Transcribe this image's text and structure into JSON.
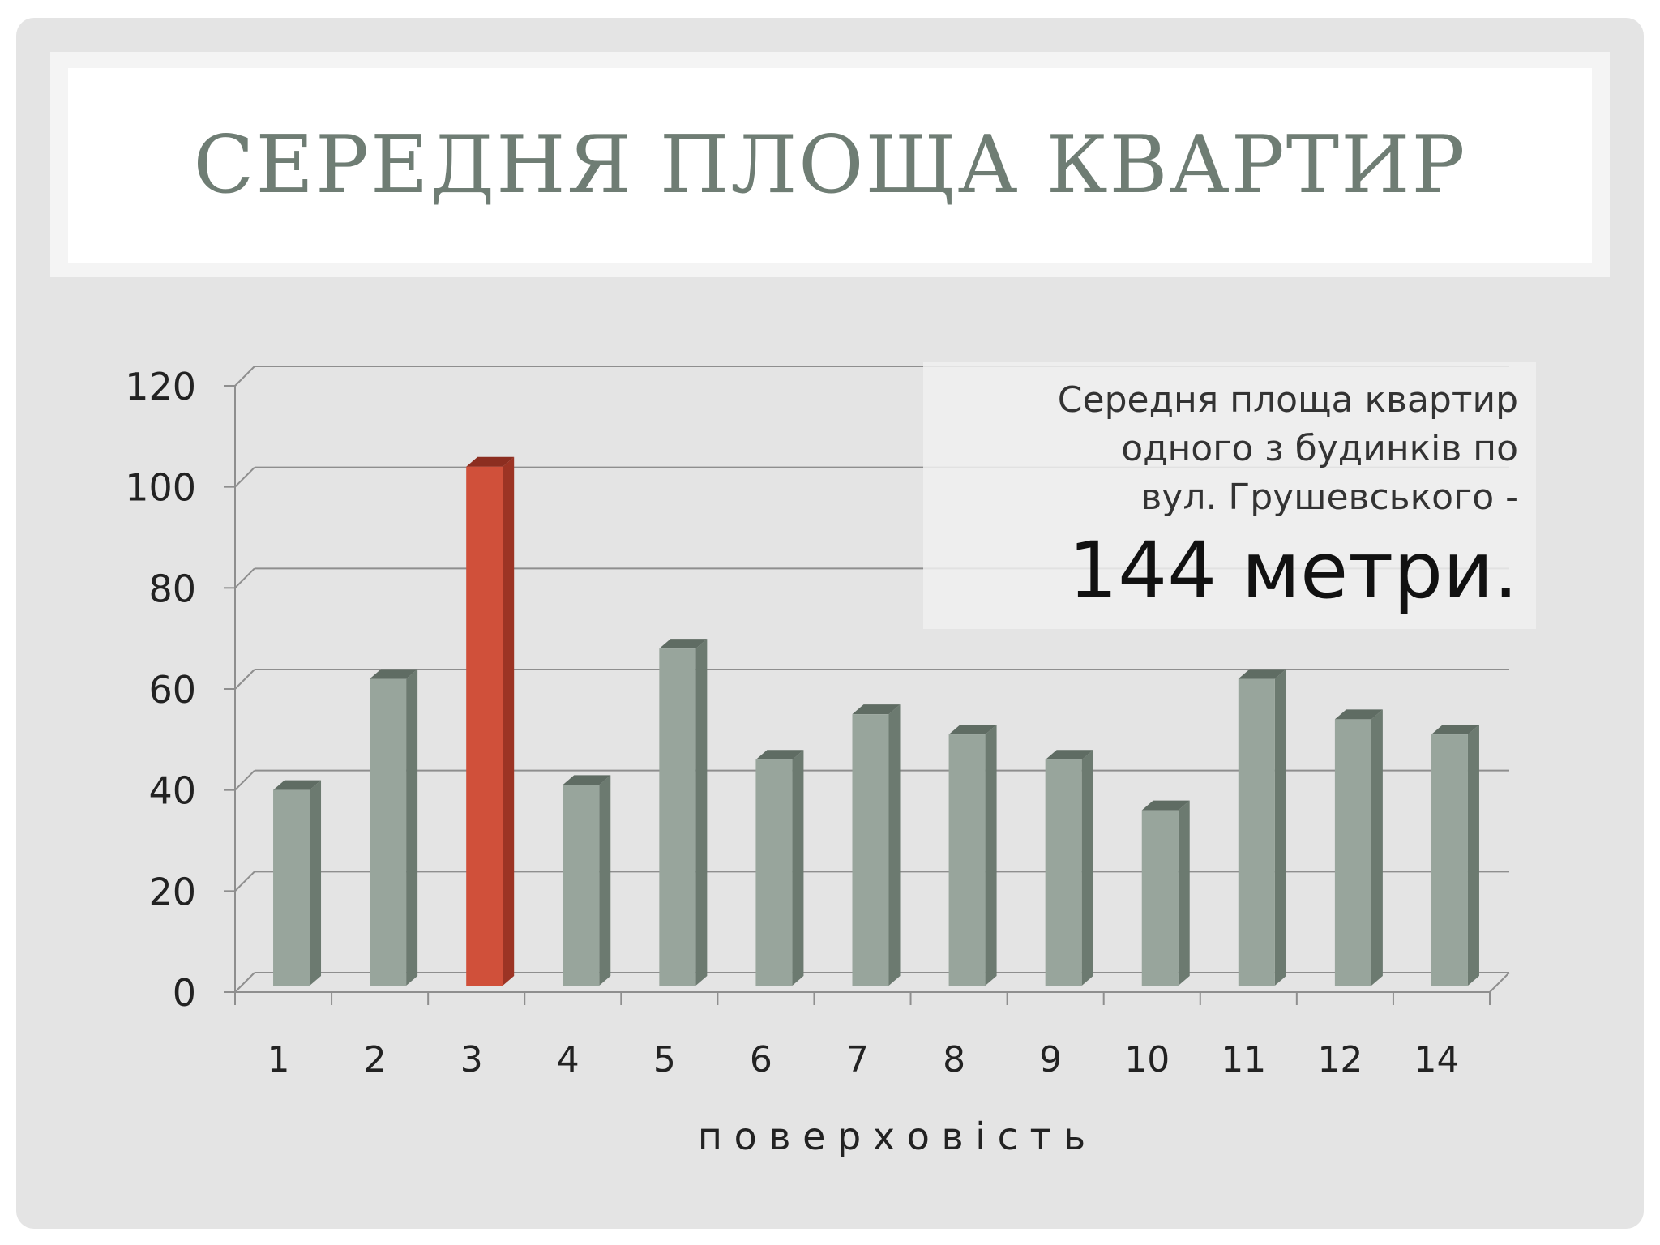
{
  "slide": {
    "title": "СЕРЕДНЯ ПЛОЩА КВАРТИР"
  },
  "note": {
    "lines": [
      "Середня площа квартир",
      "одного з будинків  по",
      "вул. Грушевського -"
    ],
    "highlight": "144 метри."
  },
  "colors": {
    "bar": "#98a59c",
    "bar_side": "#6c7a70",
    "bar_top": "#5f6c63",
    "highlight_bar": "#d0503a",
    "highlight_side": "#9c3424",
    "highlight_top": "#8c2e20",
    "grid": "#8e8e8e",
    "text": "#222222"
  },
  "chart_data": {
    "type": "bar",
    "categories": [
      "1",
      "2",
      "3",
      "4",
      "5",
      "6",
      "7",
      "8",
      "9",
      "10",
      "11",
      "12",
      "14"
    ],
    "series": [
      {
        "values": [
          40,
          62,
          104,
          41,
          68,
          46,
          55,
          51,
          46,
          36,
          62,
          54,
          51
        ]
      }
    ],
    "highlight_index": 2,
    "xlabel": "п о в е р х о в і с т ь",
    "ylabel": "",
    "ylim": [
      0,
      120
    ],
    "yticks": [
      0,
      20,
      40,
      60,
      80,
      100,
      120
    ],
    "grid": true,
    "three_d": true
  }
}
